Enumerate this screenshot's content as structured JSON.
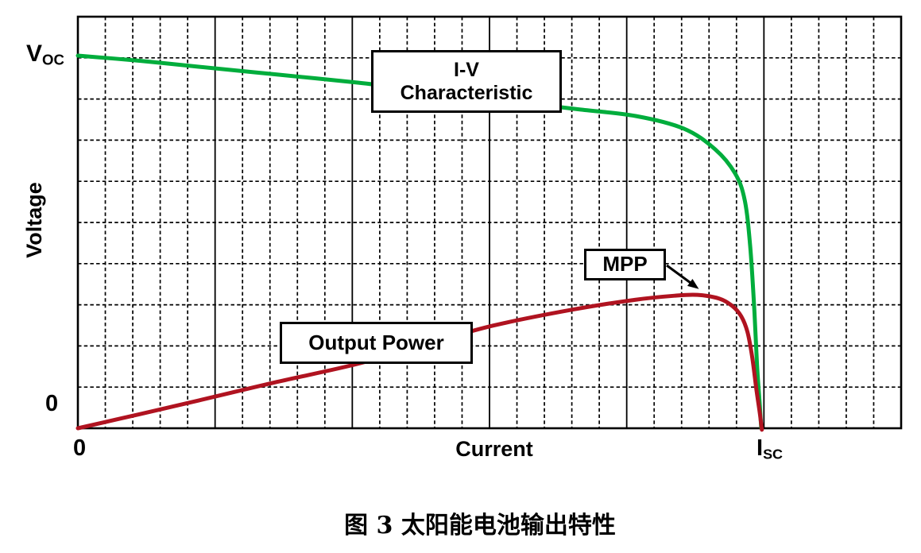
{
  "figure": {
    "caption": "图 3 太阳能电池输出特性"
  },
  "labels": {
    "voc_main": "V",
    "voc_sub": "OC",
    "isc_main": "I",
    "isc_sub": "SC"
  },
  "colors": {
    "background": "#ffffff",
    "grid": "#000000",
    "frame": "#000000",
    "iv_curve": "#00ad3c",
    "power_curve": "#b01320",
    "annotation_border": "#000000",
    "annotation_fill": "#ffffff"
  },
  "chart_data": {
    "type": "line",
    "title": "",
    "xlabel": "Current",
    "ylabel": "Voltage",
    "grid": {
      "x_divisions": 30,
      "x_major_every": 5,
      "y_divisions": 10,
      "minor_style": "dashed",
      "major_style": "solid",
      "frame": true
    },
    "x_axis": {
      "title": "Current",
      "ticks": [
        {
          "pos": 0,
          "label_main": "0",
          "label_sub": ""
        },
        {
          "pos": 1.0,
          "label_main": "I",
          "label_sub": "SC"
        }
      ],
      "range_in_isc_units": [
        0,
        1.2
      ]
    },
    "y_axis": {
      "title": "Voltage",
      "ticks": [
        {
          "pos": 0,
          "label_main": "0",
          "label_sub": ""
        },
        {
          "pos": 1.0,
          "label_main": "V",
          "label_sub": "OC"
        }
      ],
      "range_in_voc_units": [
        0,
        1.11
      ]
    },
    "series": [
      {
        "name": "I-V Characteristic",
        "color_key": "iv_curve",
        "x_unit": "fraction of Isc",
        "y_unit": "fraction of Voc",
        "points": [
          [
            0.0,
            1.006
          ],
          [
            0.09,
            0.992
          ],
          [
            0.176,
            0.976
          ],
          [
            0.29,
            0.955
          ],
          [
            0.408,
            0.933
          ],
          [
            0.52,
            0.908
          ],
          [
            0.639,
            0.881
          ],
          [
            0.73,
            0.861
          ],
          [
            0.813,
            0.843
          ],
          [
            0.883,
            0.809
          ],
          [
            0.929,
            0.753
          ],
          [
            0.958,
            0.688
          ],
          [
            0.972,
            0.616
          ],
          [
            0.98,
            0.491
          ],
          [
            0.986,
            0.32
          ],
          [
            0.99,
            0.169
          ],
          [
            0.994,
            0.062
          ],
          [
            0.996,
            0.002
          ]
        ]
      },
      {
        "name": "Output Power",
        "color_key": "power_curve",
        "x_unit": "fraction of Isc",
        "y_unit": "fraction of Voc-scale (peak = MPP)",
        "points": [
          [
            0.0,
            0.0
          ],
          [
            0.09,
            0.038
          ],
          [
            0.176,
            0.075
          ],
          [
            0.29,
            0.125
          ],
          [
            0.408,
            0.174
          ],
          [
            0.51,
            0.228
          ],
          [
            0.605,
            0.277
          ],
          [
            0.72,
            0.32
          ],
          [
            0.813,
            0.347
          ],
          [
            0.871,
            0.358
          ],
          [
            0.903,
            0.36
          ],
          [
            0.935,
            0.35
          ],
          [
            0.954,
            0.33
          ],
          [
            0.967,
            0.302
          ],
          [
            0.976,
            0.26
          ],
          [
            0.983,
            0.191
          ],
          [
            0.989,
            0.105
          ],
          [
            0.994,
            0.041
          ],
          [
            0.997,
            -0.004
          ]
        ]
      }
    ],
    "annotations": [
      {
        "id": "iv-label-box",
        "lines": [
          "I-V",
          "Characteristic"
        ]
      },
      {
        "id": "output-power-box",
        "lines": [
          "Output Power"
        ]
      },
      {
        "id": "mpp-box",
        "lines": [
          "MPP"
        ],
        "note": "arrow points to maximum power point on power curve"
      }
    ],
    "legend_position": "none"
  }
}
